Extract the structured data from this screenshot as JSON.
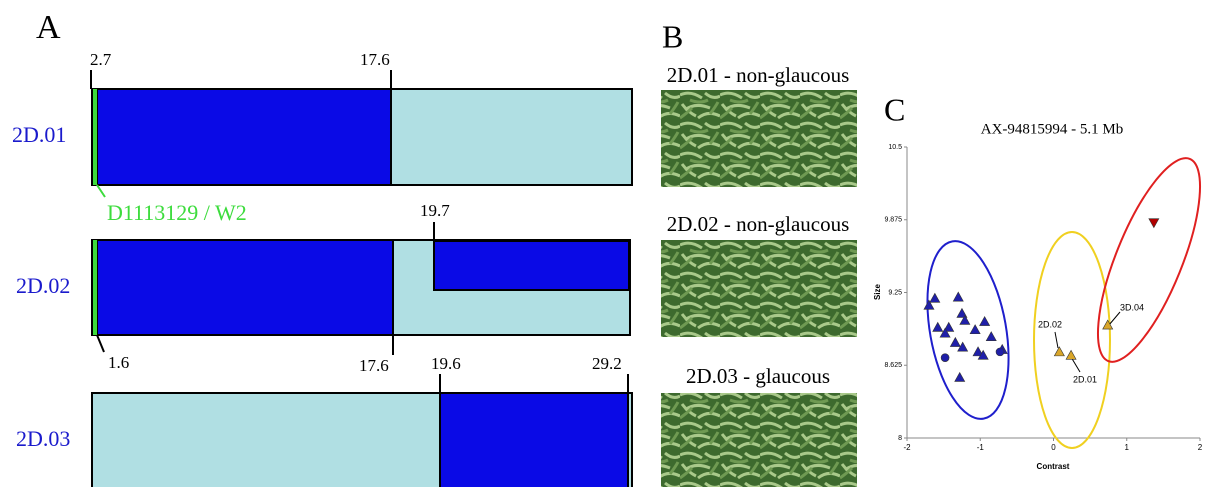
{
  "panel_a": {
    "label": "A",
    "marker": "D1113129 / W2",
    "rows": [
      {
        "name": "2D.01",
        "positions": [
          2.7,
          17.6
        ]
      },
      {
        "name": "2D.02",
        "positions": [
          19.7,
          1.6,
          17.6
        ]
      },
      {
        "name": "2D.03",
        "positions": [
          19.6,
          29.2
        ]
      }
    ]
  },
  "panel_b": {
    "label": "B",
    "captions": [
      "2D.01 - non-glaucous",
      "2D.02 - non-glaucous",
      "2D.03 - glaucous"
    ]
  },
  "chart_data": {
    "type": "scatter",
    "label": "C",
    "title": "AX-94815994 - 5.1 Mb",
    "x_label": "Contrast",
    "y_label": "Size",
    "xlim": [
      -2,
      2
    ],
    "ylim": [
      8,
      10.5
    ],
    "xticks": [
      -2,
      -1,
      0,
      1,
      2
    ],
    "yticks": [
      8,
      8.625,
      9.25,
      9.875,
      10.5
    ],
    "series": [
      {
        "color": "#1f1fa8",
        "marker": "triangle",
        "x": [
          -1.62,
          -1.3,
          -1.7,
          -1.25,
          -1.43,
          -1.58,
          -1.48,
          -1.21,
          -0.94,
          -1.07,
          -1.34,
          -1.24,
          -1.03,
          -0.85,
          -0.96,
          -0.7,
          -1.28
        ],
        "values": [
          9.2,
          9.21,
          9.14,
          9.07,
          8.95,
          8.95,
          8.9,
          9.01,
          9.0,
          8.93,
          8.82,
          8.78,
          8.74,
          8.87,
          8.71,
          8.76,
          8.52
        ]
      },
      {
        "color": "#1f1fa8",
        "marker": "circle",
        "x": [
          -1.48,
          -0.73
        ],
        "values": [
          8.69,
          8.74
        ]
      },
      {
        "color": "#d9a62a",
        "marker": "triangle",
        "x": [
          0.08,
          0.24,
          0.74
        ],
        "values": [
          8.74,
          8.71,
          8.97
        ]
      },
      {
        "color": "#b00000",
        "marker": "down-triangle",
        "x": [
          1.37
        ],
        "values": [
          9.85
        ]
      }
    ],
    "annotations": [
      "2D.02",
      "2D.01",
      "3D.04"
    ]
  }
}
